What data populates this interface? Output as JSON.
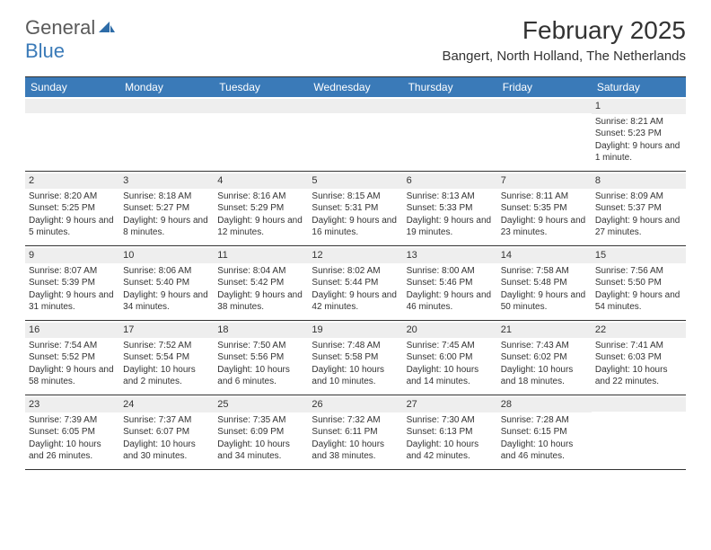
{
  "logo": {
    "text1": "General",
    "text2": "Blue",
    "icon_color": "#2d6ca8"
  },
  "title": "February 2025",
  "location": "Bangert, North Holland, The Netherlands",
  "header_color": "#3a7ab8",
  "daynum_bg": "#eeeeee",
  "border_color": "#333333",
  "weekdays": [
    "Sunday",
    "Monday",
    "Tuesday",
    "Wednesday",
    "Thursday",
    "Friday",
    "Saturday"
  ],
  "weeks": [
    [
      {
        "day": "",
        "sunrise": "",
        "sunset": "",
        "daylight": ""
      },
      {
        "day": "",
        "sunrise": "",
        "sunset": "",
        "daylight": ""
      },
      {
        "day": "",
        "sunrise": "",
        "sunset": "",
        "daylight": ""
      },
      {
        "day": "",
        "sunrise": "",
        "sunset": "",
        "daylight": ""
      },
      {
        "day": "",
        "sunrise": "",
        "sunset": "",
        "daylight": ""
      },
      {
        "day": "",
        "sunrise": "",
        "sunset": "",
        "daylight": ""
      },
      {
        "day": "1",
        "sunrise": "Sunrise: 8:21 AM",
        "sunset": "Sunset: 5:23 PM",
        "daylight": "Daylight: 9 hours and 1 minute."
      }
    ],
    [
      {
        "day": "2",
        "sunrise": "Sunrise: 8:20 AM",
        "sunset": "Sunset: 5:25 PM",
        "daylight": "Daylight: 9 hours and 5 minutes."
      },
      {
        "day": "3",
        "sunrise": "Sunrise: 8:18 AM",
        "sunset": "Sunset: 5:27 PM",
        "daylight": "Daylight: 9 hours and 8 minutes."
      },
      {
        "day": "4",
        "sunrise": "Sunrise: 8:16 AM",
        "sunset": "Sunset: 5:29 PM",
        "daylight": "Daylight: 9 hours and 12 minutes."
      },
      {
        "day": "5",
        "sunrise": "Sunrise: 8:15 AM",
        "sunset": "Sunset: 5:31 PM",
        "daylight": "Daylight: 9 hours and 16 minutes."
      },
      {
        "day": "6",
        "sunrise": "Sunrise: 8:13 AM",
        "sunset": "Sunset: 5:33 PM",
        "daylight": "Daylight: 9 hours and 19 minutes."
      },
      {
        "day": "7",
        "sunrise": "Sunrise: 8:11 AM",
        "sunset": "Sunset: 5:35 PM",
        "daylight": "Daylight: 9 hours and 23 minutes."
      },
      {
        "day": "8",
        "sunrise": "Sunrise: 8:09 AM",
        "sunset": "Sunset: 5:37 PM",
        "daylight": "Daylight: 9 hours and 27 minutes."
      }
    ],
    [
      {
        "day": "9",
        "sunrise": "Sunrise: 8:07 AM",
        "sunset": "Sunset: 5:39 PM",
        "daylight": "Daylight: 9 hours and 31 minutes."
      },
      {
        "day": "10",
        "sunrise": "Sunrise: 8:06 AM",
        "sunset": "Sunset: 5:40 PM",
        "daylight": "Daylight: 9 hours and 34 minutes."
      },
      {
        "day": "11",
        "sunrise": "Sunrise: 8:04 AM",
        "sunset": "Sunset: 5:42 PM",
        "daylight": "Daylight: 9 hours and 38 minutes."
      },
      {
        "day": "12",
        "sunrise": "Sunrise: 8:02 AM",
        "sunset": "Sunset: 5:44 PM",
        "daylight": "Daylight: 9 hours and 42 minutes."
      },
      {
        "day": "13",
        "sunrise": "Sunrise: 8:00 AM",
        "sunset": "Sunset: 5:46 PM",
        "daylight": "Daylight: 9 hours and 46 minutes."
      },
      {
        "day": "14",
        "sunrise": "Sunrise: 7:58 AM",
        "sunset": "Sunset: 5:48 PM",
        "daylight": "Daylight: 9 hours and 50 minutes."
      },
      {
        "day": "15",
        "sunrise": "Sunrise: 7:56 AM",
        "sunset": "Sunset: 5:50 PM",
        "daylight": "Daylight: 9 hours and 54 minutes."
      }
    ],
    [
      {
        "day": "16",
        "sunrise": "Sunrise: 7:54 AM",
        "sunset": "Sunset: 5:52 PM",
        "daylight": "Daylight: 9 hours and 58 minutes."
      },
      {
        "day": "17",
        "sunrise": "Sunrise: 7:52 AM",
        "sunset": "Sunset: 5:54 PM",
        "daylight": "Daylight: 10 hours and 2 minutes."
      },
      {
        "day": "18",
        "sunrise": "Sunrise: 7:50 AM",
        "sunset": "Sunset: 5:56 PM",
        "daylight": "Daylight: 10 hours and 6 minutes."
      },
      {
        "day": "19",
        "sunrise": "Sunrise: 7:48 AM",
        "sunset": "Sunset: 5:58 PM",
        "daylight": "Daylight: 10 hours and 10 minutes."
      },
      {
        "day": "20",
        "sunrise": "Sunrise: 7:45 AM",
        "sunset": "Sunset: 6:00 PM",
        "daylight": "Daylight: 10 hours and 14 minutes."
      },
      {
        "day": "21",
        "sunrise": "Sunrise: 7:43 AM",
        "sunset": "Sunset: 6:02 PM",
        "daylight": "Daylight: 10 hours and 18 minutes."
      },
      {
        "day": "22",
        "sunrise": "Sunrise: 7:41 AM",
        "sunset": "Sunset: 6:03 PM",
        "daylight": "Daylight: 10 hours and 22 minutes."
      }
    ],
    [
      {
        "day": "23",
        "sunrise": "Sunrise: 7:39 AM",
        "sunset": "Sunset: 6:05 PM",
        "daylight": "Daylight: 10 hours and 26 minutes."
      },
      {
        "day": "24",
        "sunrise": "Sunrise: 7:37 AM",
        "sunset": "Sunset: 6:07 PM",
        "daylight": "Daylight: 10 hours and 30 minutes."
      },
      {
        "day": "25",
        "sunrise": "Sunrise: 7:35 AM",
        "sunset": "Sunset: 6:09 PM",
        "daylight": "Daylight: 10 hours and 34 minutes."
      },
      {
        "day": "26",
        "sunrise": "Sunrise: 7:32 AM",
        "sunset": "Sunset: 6:11 PM",
        "daylight": "Daylight: 10 hours and 38 minutes."
      },
      {
        "day": "27",
        "sunrise": "Sunrise: 7:30 AM",
        "sunset": "Sunset: 6:13 PM",
        "daylight": "Daylight: 10 hours and 42 minutes."
      },
      {
        "day": "28",
        "sunrise": "Sunrise: 7:28 AM",
        "sunset": "Sunset: 6:15 PM",
        "daylight": "Daylight: 10 hours and 46 minutes."
      },
      {
        "day": "",
        "sunrise": "",
        "sunset": "",
        "daylight": ""
      }
    ]
  ]
}
